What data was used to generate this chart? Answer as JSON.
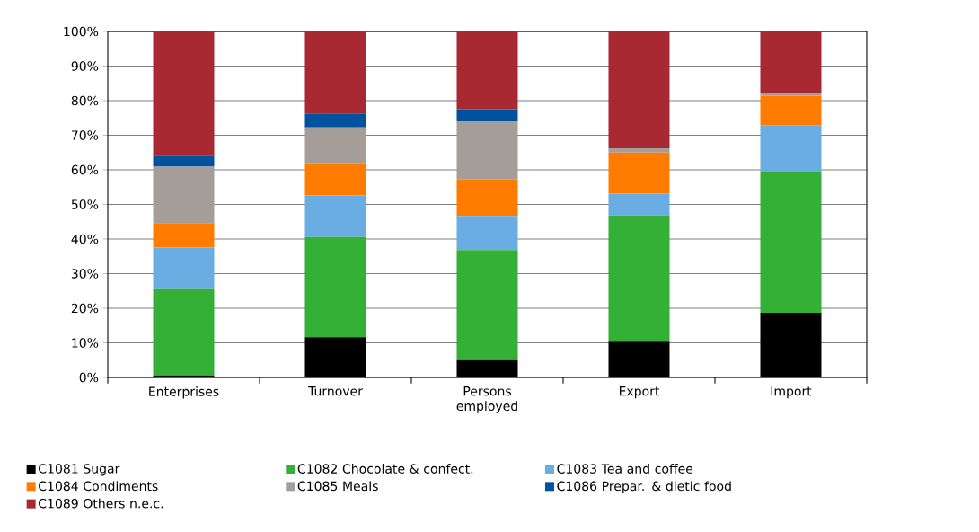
{
  "chart_data": {
    "type": "bar",
    "stacked": true,
    "categories": [
      "Enterprises",
      "Turnover",
      "Persons employed",
      "Export",
      "Import"
    ],
    "ylim": [
      0,
      100
    ],
    "yticks": [
      {
        "value": 0,
        "label": "0%"
      },
      {
        "value": 10,
        "label": "10%"
      },
      {
        "value": 20,
        "label": "20%"
      },
      {
        "value": 30,
        "label": "30%"
      },
      {
        "value": 40,
        "label": "40%"
      },
      {
        "value": 50,
        "label": "50%"
      },
      {
        "value": 60,
        "label": "60%"
      },
      {
        "value": 70,
        "label": "70%"
      },
      {
        "value": 80,
        "label": "80%"
      },
      {
        "value": 90,
        "label": "90%"
      },
      {
        "value": 100,
        "label": "100%"
      }
    ],
    "grid": "y",
    "legend": "bottom",
    "series": [
      {
        "name": "C1081 Sugar",
        "color": "#000000",
        "values": [
          0.6,
          11.6,
          5.0,
          10.3,
          18.7
        ]
      },
      {
        "name": "C1082 Chocolate & confect.",
        "color": "#33b035",
        "values": [
          24.9,
          29.0,
          31.8,
          36.5,
          40.8
        ]
      },
      {
        "name": "C1083 Tea and coffee",
        "color": "#6aade2",
        "values": [
          12.0,
          12.0,
          9.9,
          6.3,
          13.4
        ]
      },
      {
        "name": "C1084 Condiments",
        "color": "#ff7c00",
        "values": [
          7.1,
          9.3,
          10.5,
          11.9,
          8.5
        ]
      },
      {
        "name": "C1085 Meals",
        "color": "#a59d98",
        "values": [
          16.3,
          10.4,
          16.8,
          1.2,
          0.7
        ]
      },
      {
        "name": "C1086 Prepar. & dietic food",
        "color": "#00529f",
        "values": [
          3.2,
          4.0,
          3.5,
          0,
          0
        ]
      },
      {
        "name": "C1089 Others n.e.c.",
        "color": "#a82931",
        "values": [
          35.9,
          23.7,
          22.5,
          33.8,
          17.9
        ]
      }
    ]
  }
}
